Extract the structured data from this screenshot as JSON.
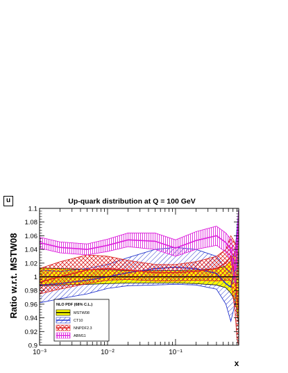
{
  "panel_label": "u",
  "chart_data": {
    "type": "area",
    "title": "Up-quark distribution at Q = 100 GeV",
    "xlabel": "x",
    "ylabel": "Ratio w.r.t. MSTW08",
    "x_scale": "log",
    "xlim": [
      0.001,
      0.85
    ],
    "ylim": [
      0.9,
      1.1
    ],
    "x_tick_labels": [
      "10⁻³",
      "10⁻²",
      "10⁻¹"
    ],
    "x_tick_values": [
      0.001,
      0.01,
      0.1
    ],
    "y_tick_labels": [
      "0.9",
      "0.92",
      "0.94",
      "0.96",
      "0.98",
      "1",
      "1.02",
      "1.04",
      "1.06",
      "1.08",
      "1.1"
    ],
    "y_tick_values": [
      0.9,
      0.92,
      0.94,
      0.96,
      0.98,
      1.0,
      1.02,
      1.04,
      1.06,
      1.08,
      1.1
    ],
    "reference_line": 1.0,
    "legend": {
      "title": "NLO PDF (68% C.L.)",
      "position": "bottom-left"
    },
    "x": [
      0.001,
      0.002,
      0.005,
      0.01,
      0.02,
      0.05,
      0.1,
      0.2,
      0.4,
      0.55,
      0.65,
      0.75,
      0.8,
      0.85
    ],
    "series": [
      {
        "name": "MSTW08",
        "color": "#ffff00",
        "edge": "#000000",
        "pattern": "solid",
        "central": [
          1.0,
          1.0,
          1.0,
          1.0,
          1.0,
          1.0,
          1.0,
          1.0,
          1.0,
          1.0,
          1.0,
          1.0,
          1.0,
          1.0
        ],
        "upper": [
          1.013,
          1.012,
          1.011,
          1.01,
          1.009,
          1.009,
          1.009,
          1.01,
          1.012,
          1.016,
          1.024,
          1.035,
          1.05,
          1.07
        ],
        "lower": [
          0.987,
          0.988,
          0.989,
          0.99,
          0.991,
          0.991,
          0.991,
          0.99,
          0.988,
          0.984,
          0.976,
          0.965,
          0.95,
          0.93
        ]
      },
      {
        "name": "CT10",
        "color": "#2233cc",
        "pattern": "hatch-diag",
        "central": [
          0.988,
          0.99,
          0.995,
          1.0,
          1.006,
          1.012,
          1.014,
          1.012,
          1.005,
          0.99,
          0.985,
          1.01,
          1.04,
          1.08
        ],
        "upper": [
          1.01,
          1.008,
          1.012,
          1.018,
          1.028,
          1.04,
          1.043,
          1.04,
          1.03,
          1.012,
          1.005,
          1.035,
          1.07,
          1.1
        ],
        "lower": [
          0.962,
          0.968,
          0.975,
          0.983,
          0.987,
          0.988,
          0.989,
          0.988,
          0.982,
          0.96,
          0.935,
          0.96,
          1.0,
          1.04
        ]
      },
      {
        "name": "NNPDF2.3",
        "color": "#dd2222",
        "pattern": "hatch-cross",
        "central": [
          0.992,
          1.0,
          1.01,
          1.012,
          1.01,
          1.006,
          1.006,
          1.008,
          1.012,
          1.02,
          1.03,
          1.0,
          0.97,
          0.95
        ],
        "upper": [
          1.012,
          1.022,
          1.032,
          1.03,
          1.024,
          1.018,
          1.018,
          1.022,
          1.03,
          1.04,
          1.06,
          1.05,
          1.04,
          1.03
        ],
        "lower": [
          0.975,
          0.982,
          0.99,
          0.995,
          0.996,
          0.994,
          0.994,
          0.995,
          0.994,
          0.995,
          0.995,
          0.95,
          0.91,
          0.9
        ]
      },
      {
        "name": "ABM11",
        "color": "#dd22dd",
        "pattern": "errorbars",
        "central": [
          1.05,
          1.043,
          1.04,
          1.046,
          1.054,
          1.052,
          1.042,
          1.053,
          1.06,
          1.05,
          1.04,
          1.01,
          1.04,
          1.09
        ],
        "upper": [
          1.058,
          1.051,
          1.048,
          1.055,
          1.064,
          1.064,
          1.054,
          1.066,
          1.074,
          1.064,
          1.055,
          1.03,
          1.06,
          1.1
        ],
        "lower": [
          1.042,
          1.035,
          1.032,
          1.037,
          1.044,
          1.04,
          1.03,
          1.04,
          1.046,
          1.036,
          1.025,
          0.99,
          1.02,
          1.07
        ]
      }
    ]
  }
}
